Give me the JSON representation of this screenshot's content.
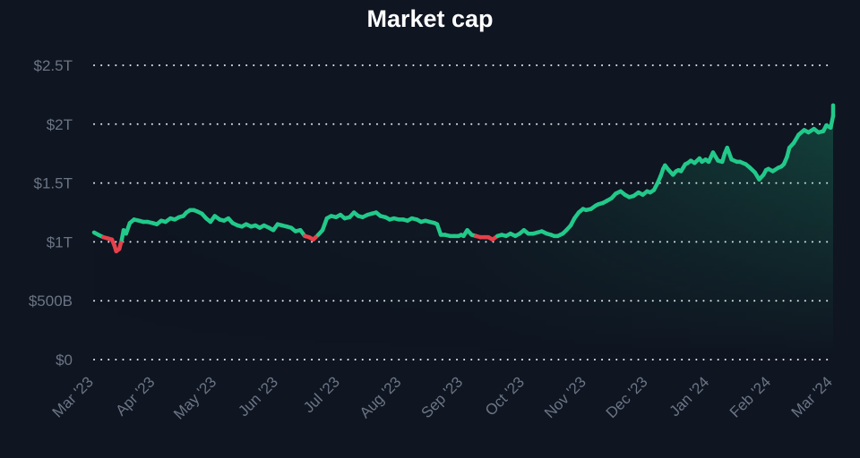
{
  "chart": {
    "title": "Market cap",
    "colors": {
      "background": "#0f1521",
      "up": "#22c98a",
      "down": "#e5414b",
      "grid": "#e6e9ee",
      "axis_text": "#6b7585"
    },
    "y_ticks": [
      "$0",
      "$500B",
      "$1T",
      "$1.5T",
      "$2T",
      "$2.5T"
    ],
    "x_ticks": [
      "Mar '23",
      "Apr '23",
      "May '23",
      "Jun '23",
      "Jul '23",
      "Aug '23",
      "Sep '23",
      "Oct '23",
      "Nov '23",
      "Dec '23",
      "Jan '24",
      "Feb '24",
      "Mar '24"
    ]
  },
  "chart_data": {
    "type": "area",
    "title": "Market cap",
    "xlabel": "",
    "ylabel": "",
    "ylim": [
      0,
      2.5
    ],
    "y_unit": "T USD",
    "grid": true,
    "legend": "none",
    "baseline_value": 1.05,
    "categories": [
      "Mar '23",
      "Apr '23",
      "May '23",
      "Jun '23",
      "Jul '23",
      "Aug '23",
      "Sep '23",
      "Oct '23",
      "Nov '23",
      "Dec '23",
      "Jan '24",
      "Feb '24",
      "Mar '24"
    ],
    "series": [
      {
        "name": "Market cap",
        "x": [
          0,
          0.07,
          0.15,
          0.22,
          0.29,
          0.33,
          0.36,
          0.41,
          0.45,
          0.48,
          0.52,
          0.58,
          0.65,
          0.73,
          0.8,
          0.87,
          0.95,
          1.02,
          1.09,
          1.16,
          1.24,
          1.31,
          1.38,
          1.45,
          1.5,
          1.56,
          1.62,
          1.67,
          1.75,
          1.82,
          1.89,
          1.96,
          2.04,
          2.11,
          2.18,
          2.25,
          2.33,
          2.4,
          2.47,
          2.55,
          2.62,
          2.69,
          2.76,
          2.84,
          2.91,
          2.98,
          3.05,
          3.13,
          3.2,
          3.27,
          3.35,
          3.42,
          3.49,
          3.56,
          3.64,
          3.71,
          3.78,
          3.85,
          3.93,
          4.0,
          4.07,
          4.15,
          4.22,
          4.29,
          4.36,
          4.44,
          4.51,
          4.58,
          4.65,
          4.73,
          4.8,
          4.87,
          4.95,
          5.02,
          5.09,
          5.16,
          5.24,
          5.31,
          5.38,
          5.45,
          5.53,
          5.57,
          5.63,
          5.7,
          5.78,
          5.85,
          5.92,
          5.96,
          6.0,
          6.06,
          6.13,
          6.2,
          6.27,
          6.35,
          6.4,
          6.47,
          6.55,
          6.62,
          6.69,
          6.76,
          6.84,
          6.91,
          6.98,
          7.05,
          7.13,
          7.2,
          7.27,
          7.35,
          7.42,
          7.47,
          7.53,
          7.57,
          7.61,
          7.67,
          7.74,
          7.8,
          7.87,
          7.94,
          7.99,
          8.07,
          8.15,
          8.19,
          8.26,
          8.33,
          8.4,
          8.47,
          8.55,
          8.62,
          8.69,
          8.76,
          8.84,
          8.91,
          8.98,
          9.03,
          9.09,
          9.15,
          9.2,
          9.24,
          9.27,
          9.33,
          9.4,
          9.45,
          9.49,
          9.53,
          9.6,
          9.64,
          9.69,
          9.75,
          9.83,
          9.87,
          9.93,
          9.98,
          10.05,
          10.13,
          10.2,
          10.24,
          10.28,
          10.35,
          10.44,
          10.49,
          10.58,
          10.65,
          10.73,
          10.8,
          10.87,
          10.91,
          10.95,
          11.02,
          11.11,
          11.16,
          11.2,
          11.25,
          11.29,
          11.36,
          11.44,
          11.53,
          11.6,
          11.69,
          11.76,
          11.84,
          11.89,
          11.96,
          12.0,
          12.0
        ],
        "values": [
          1.08,
          1.06,
          1.04,
          1.03,
          1.02,
          0.97,
          0.92,
          0.94,
          1.02,
          1.1,
          1.07,
          1.16,
          1.19,
          1.18,
          1.17,
          1.17,
          1.16,
          1.15,
          1.18,
          1.17,
          1.2,
          1.19,
          1.21,
          1.22,
          1.25,
          1.27,
          1.27,
          1.26,
          1.24,
          1.2,
          1.17,
          1.22,
          1.19,
          1.18,
          1.2,
          1.16,
          1.14,
          1.13,
          1.15,
          1.13,
          1.14,
          1.12,
          1.14,
          1.12,
          1.1,
          1.15,
          1.14,
          1.13,
          1.12,
          1.09,
          1.1,
          1.05,
          1.04,
          1.02,
          1.06,
          1.1,
          1.2,
          1.22,
          1.21,
          1.23,
          1.2,
          1.21,
          1.25,
          1.22,
          1.21,
          1.23,
          1.24,
          1.25,
          1.22,
          1.21,
          1.19,
          1.2,
          1.19,
          1.19,
          1.18,
          1.2,
          1.19,
          1.17,
          1.18,
          1.17,
          1.16,
          1.15,
          1.06,
          1.06,
          1.05,
          1.05,
          1.05,
          1.06,
          1.05,
          1.1,
          1.06,
          1.05,
          1.04,
          1.04,
          1.04,
          1.02,
          1.05,
          1.06,
          1.05,
          1.07,
          1.05,
          1.07,
          1.1,
          1.07,
          1.07,
          1.08,
          1.09,
          1.07,
          1.06,
          1.05,
          1.05,
          1.06,
          1.07,
          1.1,
          1.14,
          1.2,
          1.25,
          1.28,
          1.27,
          1.28,
          1.31,
          1.32,
          1.33,
          1.35,
          1.37,
          1.41,
          1.43,
          1.4,
          1.38,
          1.39,
          1.42,
          1.4,
          1.43,
          1.42,
          1.44,
          1.5,
          1.56,
          1.62,
          1.65,
          1.61,
          1.57,
          1.6,
          1.61,
          1.6,
          1.66,
          1.67,
          1.69,
          1.67,
          1.71,
          1.68,
          1.7,
          1.68,
          1.76,
          1.69,
          1.68,
          1.75,
          1.8,
          1.7,
          1.68,
          1.68,
          1.66,
          1.63,
          1.59,
          1.53,
          1.57,
          1.61,
          1.62,
          1.6,
          1.63,
          1.64,
          1.66,
          1.72,
          1.8,
          1.84,
          1.91,
          1.95,
          1.93,
          1.96,
          1.93,
          1.94,
          1.99,
          1.97,
          2.07,
          2.16
        ]
      }
    ]
  }
}
